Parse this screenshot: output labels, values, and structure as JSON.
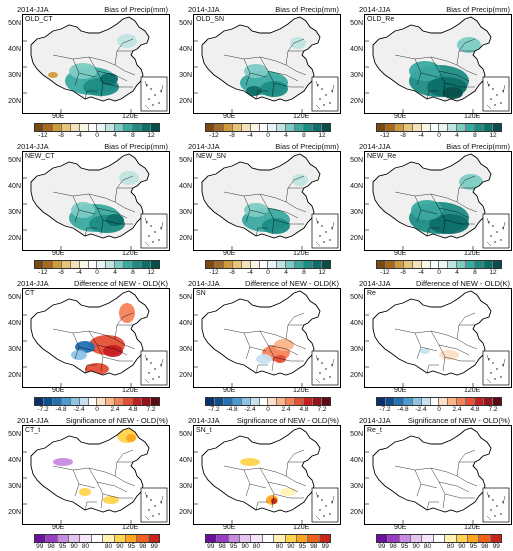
{
  "panels": [
    {
      "period": "2014-JJA",
      "title": "Bias of Precip(mm)",
      "tag": "OLD_CT"
    },
    {
      "period": "2014-JJA",
      "title": "Bias of Precip(mm)",
      "tag": "OLD_SN"
    },
    {
      "period": "2014-JJA",
      "title": "Bias of Precip(mm)",
      "tag": "OLD_Re"
    },
    {
      "period": "2014-JJA",
      "title": "Bias of Precip(mm)",
      "tag": "NEW_CT"
    },
    {
      "period": "2014-JJA",
      "title": "Bias of Precip(mm)",
      "tag": "NEW_SN"
    },
    {
      "period": "2014-JJA",
      "title": "Bias of Precip(mm)",
      "tag": "NEW_Re"
    },
    {
      "period": "2014-JJA",
      "title": "Difference of NEW - OLD(K)",
      "tag": "CT"
    },
    {
      "period": "2014-JJA",
      "title": "Difference of NEW - OLD(K)",
      "tag": "SN"
    },
    {
      "period": "2014-JJA",
      "title": "Difference of NEW - OLD(K)",
      "tag": "Re"
    },
    {
      "period": "2014-JJA",
      "title": "Significance of NEW - OLD(%)",
      "tag": "CT_t"
    },
    {
      "period": "2014-JJA",
      "title": "Significance of NEW - OLD(%)",
      "tag": "SN_t"
    },
    {
      "period": "2014-JJA",
      "title": "Significance of NEW - OLD(%)",
      "tag": "Re_t"
    }
  ],
  "axes": {
    "lat_labels": [
      "50N",
      "40N",
      "30N",
      "20N"
    ],
    "lon_labels": [
      "90E",
      "120E"
    ]
  },
  "colorbars": {
    "bias": {
      "labels": [
        "-12",
        "-8",
        "-4",
        "0",
        "4",
        "8",
        "12"
      ],
      "colors": [
        "#7a4a12",
        "#a76a1d",
        "#d09a38",
        "#e6c479",
        "#f3e2b6",
        "#fbf5e6",
        "#ffffff",
        "#e8f5f4",
        "#bfe4e0",
        "#7ccbc3",
        "#3aa9a0",
        "#1c8c84",
        "#0d6f68",
        "#084f4a"
      ]
    },
    "diff": {
      "labels": [
        "-7.2",
        "-4.8",
        "-2.4",
        "0",
        "2.4",
        "4.8",
        "7.2"
      ],
      "colors": [
        "#08306b",
        "#0b4f91",
        "#2171b5",
        "#4b9bd0",
        "#8cc4e4",
        "#c6e2f1",
        "#ffffff",
        "#fde0c8",
        "#fbb58b",
        "#f5835a",
        "#e54f35",
        "#c51f22",
        "#93151b",
        "#5e0a12"
      ]
    },
    "sig": {
      "labels": [
        "99",
        "98",
        "95",
        "90",
        "80",
        "80",
        "90",
        "95",
        "98",
        "99"
      ],
      "colors": [
        "#6a0fa0",
        "#9b3cc7",
        "#c98ae1",
        "#e5c4ef",
        "#f4e6f8",
        "#ffffff",
        "#fff2b3",
        "#ffd34d",
        "#ffa61e",
        "#f2611b",
        "#c8241b"
      ]
    }
  }
}
